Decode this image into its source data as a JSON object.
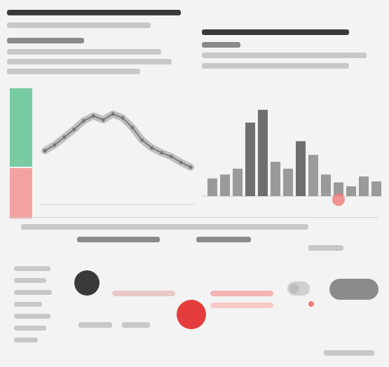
{
  "chart_data": {
    "type": "line",
    "series": [
      {
        "values": [
          52,
          58,
          66,
          74,
          83,
          88,
          84,
          90,
          86,
          76,
          63,
          55,
          50,
          46,
          40,
          35
        ]
      }
    ],
    "ylim": [
      0,
      100
    ],
    "grid": false
  },
  "bars": {
    "values": [
      18,
      22,
      28,
      75,
      88,
      35,
      28,
      56,
      42,
      22,
      14,
      10,
      20,
      15
    ]
  },
  "colors": {
    "accent_red": "#f07b7b",
    "accent_green": "#79cba4",
    "dark": "#3a3a3a",
    "light": "#d2d2d2"
  }
}
